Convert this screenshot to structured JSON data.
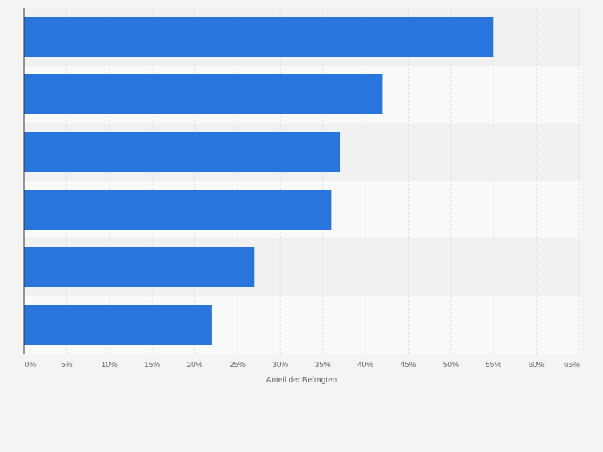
{
  "chart_data": {
    "type": "bar",
    "orientation": "horizontal",
    "categories": [
      "",
      "",
      "",
      "",
      "",
      ""
    ],
    "values": [
      55,
      42,
      37,
      36,
      27,
      22
    ],
    "value_unit": "%",
    "xlabel": "Anteil der Befragten",
    "ylabel": "",
    "xlim": [
      0,
      65
    ],
    "x_ticks": [
      "0%",
      "5%",
      "10%",
      "15%",
      "20%",
      "25%",
      "30%",
      "35%",
      "40%",
      "45%",
      "50%",
      "55%",
      "60%",
      "65%"
    ],
    "grid": true,
    "bar_color": "#2876dd",
    "row_band_colors": [
      "#f1f1f1",
      "#fafafa"
    ],
    "gridline_color": "#dcdcdc",
    "axis_color": "#333333",
    "tick_label_color": "#666666"
  }
}
